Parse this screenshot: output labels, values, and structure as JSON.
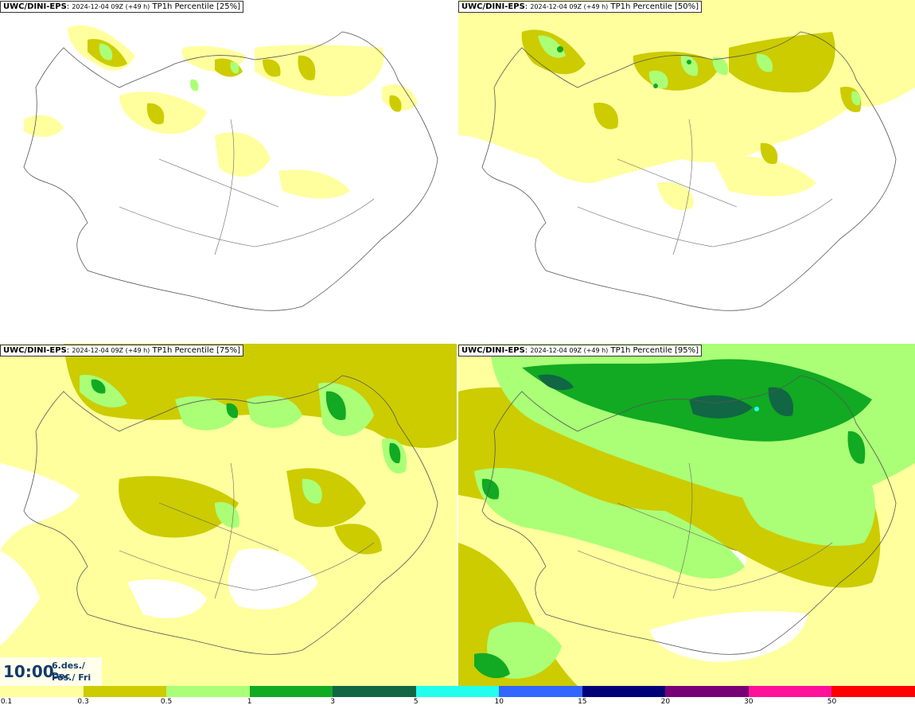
{
  "panels": [
    {
      "brand": "UWC/DINI-EPS",
      "meta": "2024-12-04 09Z (+49 h)",
      "title": "TP1h Percentile [25%]"
    },
    {
      "brand": "UWC/DINI-EPS",
      "meta": "2024-12-04 09Z (+49 h)",
      "title": "TP1h Percentile [50%]"
    },
    {
      "brand": "UWC/DINI-EPS",
      "meta": "2024-12-04 09Z (+49 h)",
      "title": "TP1h Percentile [75%]"
    },
    {
      "brand": "UWC/DINI-EPS",
      "meta": "2024-12-04 09Z (+49 h)",
      "title": "TP1h Percentile [95%]"
    }
  ],
  "valid_time": {
    "time": "10:00",
    "date_line1": "6.des./ Dec",
    "date_line2": "Fös./ Fri"
  },
  "legend": {
    "colors": [
      "#ffff9e",
      "#cccc00",
      "#aaff77",
      "#11aa22",
      "#116644",
      "#22ffee",
      "#3366ff",
      "#000077",
      "#770077",
      "#ff1199",
      "#ff0000"
    ],
    "labels": [
      "0.1",
      "0.3",
      "0.5",
      "1",
      "3",
      "5",
      "10",
      "15",
      "20",
      "30",
      "50"
    ]
  }
}
